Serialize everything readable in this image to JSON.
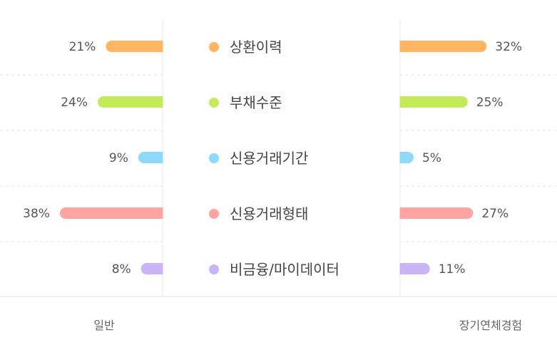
{
  "chart_data": {
    "type": "bar",
    "orientation": "horizontal-diverging",
    "categories": [
      "상환이력",
      "부채수준",
      "신용거래기간",
      "신용거래형태",
      "비금융/마이데이터"
    ],
    "series": [
      {
        "name": "일반",
        "values": [
          21,
          24,
          9,
          38,
          8
        ],
        "labels": [
          "21%",
          "24%",
          "9%",
          "38%",
          "8%"
        ]
      },
      {
        "name": "장기연체경험",
        "values": [
          32,
          25,
          5,
          27,
          11
        ],
        "labels": [
          "32%",
          "25%",
          "5%",
          "27%",
          "11%"
        ]
      }
    ],
    "colors": [
      "#FFB562",
      "#C2EB5A",
      "#8ED8FA",
      "#FFA3A3",
      "#C8B4F7"
    ],
    "legend_placement": "center",
    "grid": true
  }
}
